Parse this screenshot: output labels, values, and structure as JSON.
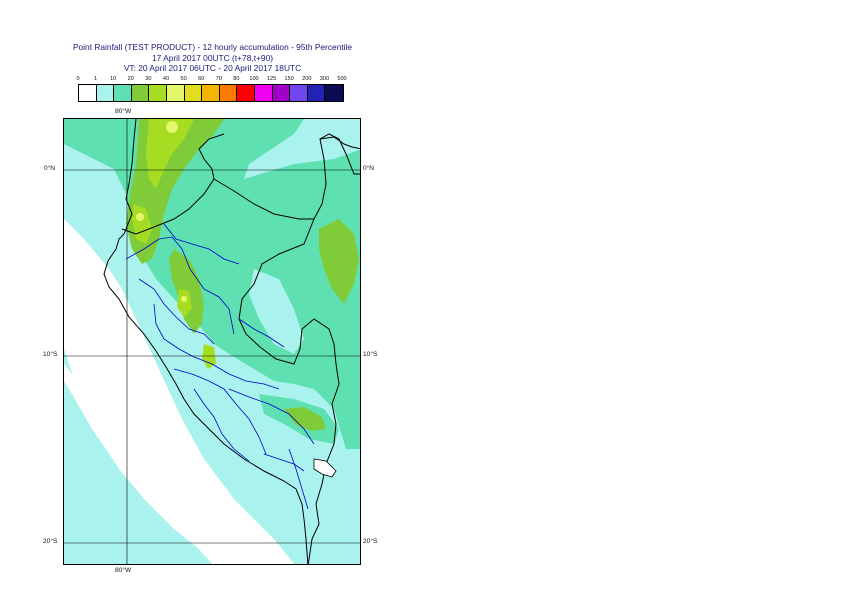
{
  "title": {
    "line1": "Point Rainfall (TEST PRODUCT) - 12 hourly accumulation - 95th Percentile",
    "line2": "17 April 2017 00UTC (t+78,t+90)",
    "line3": "VT: 20 April 2017 06UTC - 20 April 2017 18UTC"
  },
  "legend": {
    "labels": [
      "0",
      "1",
      "10",
      "20",
      "30",
      "40",
      "50",
      "60",
      "70",
      "80",
      "100",
      "125",
      "150",
      "200",
      "300",
      "500"
    ],
    "colors": [
      "#ffffff",
      "#a9f2ee",
      "#5ee0b0",
      "#7fcc38",
      "#a6dd23",
      "#e5f86b",
      "#e2dd1f",
      "#f4b500",
      "#ff7b00",
      "#ff0000",
      "#f000f0",
      "#a000c8",
      "#7046f0",
      "#2222b4",
      "#0c0c52"
    ]
  },
  "axes": {
    "lon_top": "80°W",
    "lon_bottom": "80°W",
    "lat_left": [
      "0°N",
      "10°S",
      "20°S"
    ],
    "lat_right": [
      "0°N",
      "10°S",
      "20°S"
    ]
  },
  "map_colors": {
    "ocean": "#ffffff",
    "light_cyan": "#a9f2ee",
    "mint": "#5ee0b0",
    "green": "#7fcc38",
    "yellowgreen": "#a6dd23",
    "yellow": "#e5f86b",
    "border_black": "#000000",
    "border_blue": "#0000cc",
    "grid": "#000000"
  }
}
